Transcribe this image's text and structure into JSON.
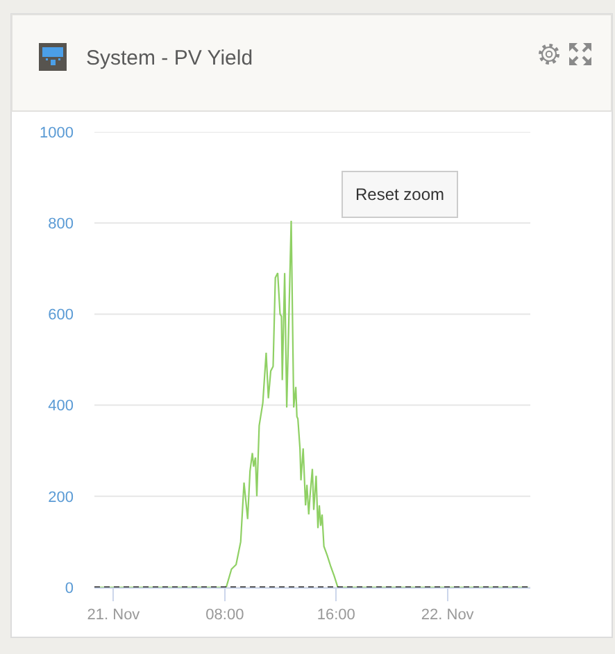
{
  "chart_data": {
    "type": "line",
    "title": "System - PV Yield",
    "annotations": [
      "Reset zoom"
    ],
    "x": [
      -1.35,
      8.1,
      8.48,
      8.81,
      9.14,
      9.38,
      9.64,
      9.81,
      9.98,
      10.07,
      10.2,
      10.3,
      10.47,
      10.73,
      10.97,
      11.13,
      11.3,
      11.47,
      11.63,
      11.8,
      11.97,
      12.07,
      12.13,
      12.3,
      12.45,
      12.77,
      12.95,
      13.1,
      13.18,
      13.25,
      13.4,
      13.47,
      13.63,
      13.8,
      13.9,
      14.03,
      14.12,
      14.29,
      14.39,
      14.56,
      14.69,
      14.79,
      14.89,
      14.99,
      15.12,
      15.36,
      15.62,
      15.86,
      16.12,
      29.8
    ],
    "series": [
      {
        "color": "#8fd064",
        "values": [
          0,
          0,
          40,
          50,
          100,
          230,
          150,
          255,
          295,
          265,
          285,
          200,
          355,
          405,
          515,
          415,
          475,
          485,
          680,
          690,
          600,
          595,
          455,
          690,
          395,
          805,
          395,
          440,
          375,
          370,
          305,
          235,
          305,
          180,
          225,
          160,
          200,
          260,
          170,
          245,
          130,
          180,
          135,
          160,
          90,
          70,
          45,
          25,
          0,
          0
        ]
      }
    ],
    "xlim": [
      -1.37,
      29.95
    ],
    "xticks": [
      {
        "value": 0,
        "label": "21. Nov"
      },
      {
        "value": 8,
        "label": "08:00"
      },
      {
        "value": 16,
        "label": "16:00"
      },
      {
        "value": 24,
        "label": "22. Nov"
      }
    ],
    "ylim": [
      0,
      1000
    ],
    "yticks": [
      0,
      200,
      400,
      600,
      800,
      1000
    ],
    "grid": "y",
    "ref_lines": [
      {
        "axis": "y",
        "value": 0,
        "color": "#000000",
        "line_style": "dashed"
      }
    ]
  }
}
